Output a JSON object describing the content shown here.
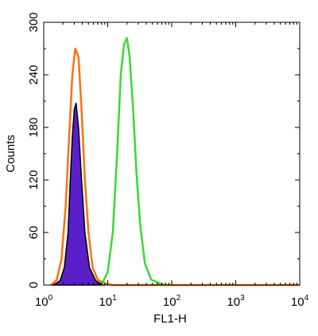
{
  "chart_data": {
    "type": "histogram",
    "xlabel": "FL1-H",
    "ylabel": "Counts",
    "x_scale": "log",
    "xlim": [
      1,
      10000
    ],
    "ylim": [
      0,
      300
    ],
    "y_ticks": [
      "0",
      "60",
      "120",
      "180",
      "240",
      "300"
    ],
    "x_ticks": [
      {
        "base": "10",
        "exp": "0"
      },
      {
        "base": "10",
        "exp": "1"
      },
      {
        "base": "10",
        "exp": "2"
      },
      {
        "base": "10",
        "exp": "3"
      },
      {
        "base": "10",
        "exp": "4"
      }
    ],
    "grid": false,
    "series": [
      {
        "style": "filled",
        "color": "#5a1fc8",
        "edge_color": "#000000",
        "x": [
          1.4,
          1.8,
          2.1,
          2.4,
          2.6,
          2.8,
          3.0,
          3.2,
          3.5,
          3.9,
          4.4,
          5.2,
          6.5,
          8.5
        ],
        "y": [
          0,
          5,
          20,
          60,
          120,
          170,
          200,
          208,
          180,
          120,
          60,
          20,
          5,
          0
        ]
      },
      {
        "style": "line",
        "color": "#ff7010",
        "x": [
          1.3,
          1.6,
          1.9,
          2.2,
          2.5,
          2.8,
          3.1,
          3.5,
          3.9,
          4.4,
          5.0,
          5.8,
          7.0,
          9.0,
          12.0,
          20.0,
          10000
        ],
        "y": [
          0,
          6,
          30,
          90,
          170,
          240,
          270,
          260,
          200,
          120,
          60,
          20,
          6,
          2,
          0,
          0,
          0
        ]
      },
      {
        "style": "line",
        "color": "#33dd33",
        "x": [
          8.0,
          10.0,
          12.0,
          14.0,
          16.0,
          18.0,
          20.0,
          22.0,
          25.0,
          28.0,
          32.0,
          38.0,
          48.0,
          60.0,
          70.0,
          80.0
        ],
        "y": [
          0,
          15,
          60,
          150,
          240,
          275,
          282,
          260,
          200,
          130,
          70,
          25,
          6,
          3,
          1,
          0
        ]
      }
    ]
  }
}
